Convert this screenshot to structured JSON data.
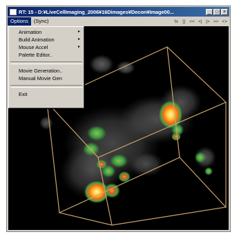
{
  "window": {
    "title": "RT: 15 - D:¥LiveCellImaging_2006¥16Dimages¥Decon¥Image00...",
    "buttons": [
      "_",
      "□",
      "×"
    ]
  },
  "menubar": {
    "items": [
      "Options",
      "(Sync)"
    ]
  },
  "toolbar": {
    "items": [
      "f±",
      "[]",
      "<<",
      "<|",
      "|>",
      ">>",
      "<>"
    ]
  },
  "dropdown": {
    "items": [
      {
        "label": "Animation",
        "submenu": true
      },
      {
        "label": "Build Animation",
        "submenu": true
      },
      {
        "label": "Mouse Accel",
        "submenu": true
      },
      {
        "label": "Palette Editor..",
        "submenu": false
      },
      {
        "label": "Movie Generation..",
        "submenu": false
      },
      {
        "label": "Manual Movie Gen",
        "submenu": false
      },
      {
        "label": "Exit",
        "submenu": false
      }
    ],
    "submenu_arrow": "▸"
  },
  "colors": {
    "titlebar": "#0a246a",
    "bounding_box": "#c9a46a",
    "hot_spot": "#ffcc33",
    "mid_spot": "#ff6a1a",
    "green_halo": "#3f9f3f"
  }
}
